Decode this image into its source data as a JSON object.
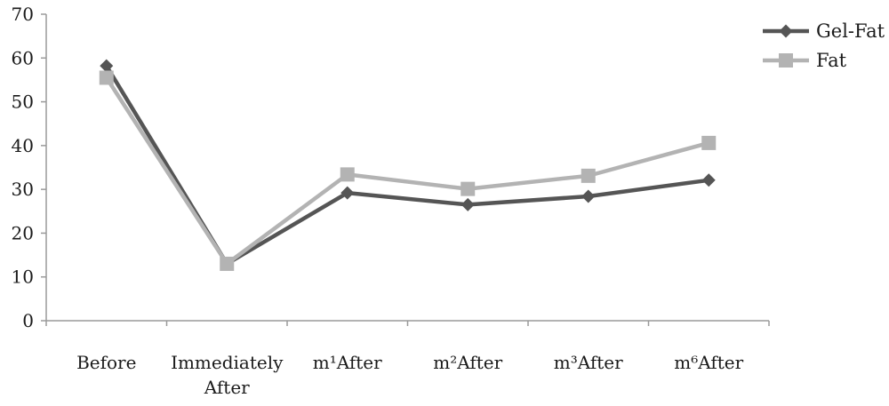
{
  "chart_data": {
    "type": "line",
    "title": "",
    "xlabel": "",
    "ylabel": "",
    "ylim": [
      0,
      70
    ],
    "y_ticks": [
      "0",
      "10",
      "20",
      "30",
      "40",
      "50",
      "60",
      "70"
    ],
    "categories": [
      [
        "Before"
      ],
      [
        "Immediately",
        "After"
      ],
      [
        "m¹After"
      ],
      [
        "m²After"
      ],
      [
        "m³After"
      ],
      [
        "m⁶After"
      ]
    ],
    "series": [
      {
        "name": "Gel-Fat",
        "marker": "diamond",
        "color": "#555555",
        "values": [
          58.2,
          13,
          29.2,
          26.5,
          28.4,
          32.1
        ]
      },
      {
        "name": "Fat",
        "marker": "square",
        "color": "#b3b3b3",
        "values": [
          55.5,
          13,
          33.4,
          30.1,
          33.1,
          40.6
        ]
      }
    ],
    "grid": false,
    "legend_position": "top-right"
  }
}
